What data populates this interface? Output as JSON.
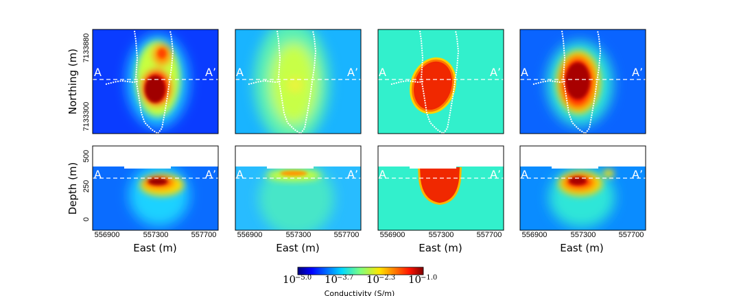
{
  "chart_data": {
    "type": "heatmap",
    "colormap": "jet",
    "colorbar": {
      "label": "Conductivity (S/m)",
      "scale": "log",
      "range_log10": [
        -5.0,
        -1.0
      ],
      "ticks": [
        {
          "base": "10",
          "exp": "−5.0"
        },
        {
          "base": "10",
          "exp": "−3.7"
        },
        {
          "base": "10",
          "exp": "−2.3"
        },
        {
          "base": "10",
          "exp": "−1.0"
        }
      ]
    },
    "x_axis": {
      "label": "East (m)",
      "ticks": [
        "556900",
        "557300",
        "557700"
      ]
    },
    "plan_axis": {
      "label": "Northing (m)",
      "ticks": [
        "7133300",
        "7133880"
      ]
    },
    "section_axis": {
      "label": "Depth (m)",
      "ticks": [
        "0",
        "250",
        "500"
      ]
    },
    "section_line_labels": {
      "start": "A",
      "end": "A’"
    },
    "panels": [
      {
        "view": "plan",
        "column": 1,
        "background": "#0a3cff",
        "anomaly": "high conductivity core (~1e-1.0 S/m) with upper and lower lobes near 557250 E"
      },
      {
        "view": "plan",
        "column": 2,
        "background": "#19b4ff",
        "anomaly": "broad moderate conductivity (~1e-2.8 S/m)"
      },
      {
        "view": "plan",
        "column": 3,
        "background": "#32f0cc",
        "anomaly": "uniform ellipse ~1e-1.3 S/m"
      },
      {
        "view": "plan",
        "column": 4,
        "background": "#0a64ff",
        "anomaly": "high conductivity core (~1e-1.0 S/m)"
      },
      {
        "view": "section",
        "column": 1,
        "background": "#0a6cff",
        "anomaly": "compact conductor at ~300 m depth"
      },
      {
        "view": "section",
        "column": 2,
        "background": "#28bcff",
        "anomaly": "thin conductor near 350 m with broad halo"
      },
      {
        "view": "section",
        "column": 3,
        "background": "#32f0cc",
        "anomaly": "uniform body from surface to ~150 m"
      },
      {
        "view": "section",
        "column": 4,
        "background": "#0a8cff",
        "anomaly": "conductor near 300 m plus small shallow body east"
      }
    ]
  }
}
